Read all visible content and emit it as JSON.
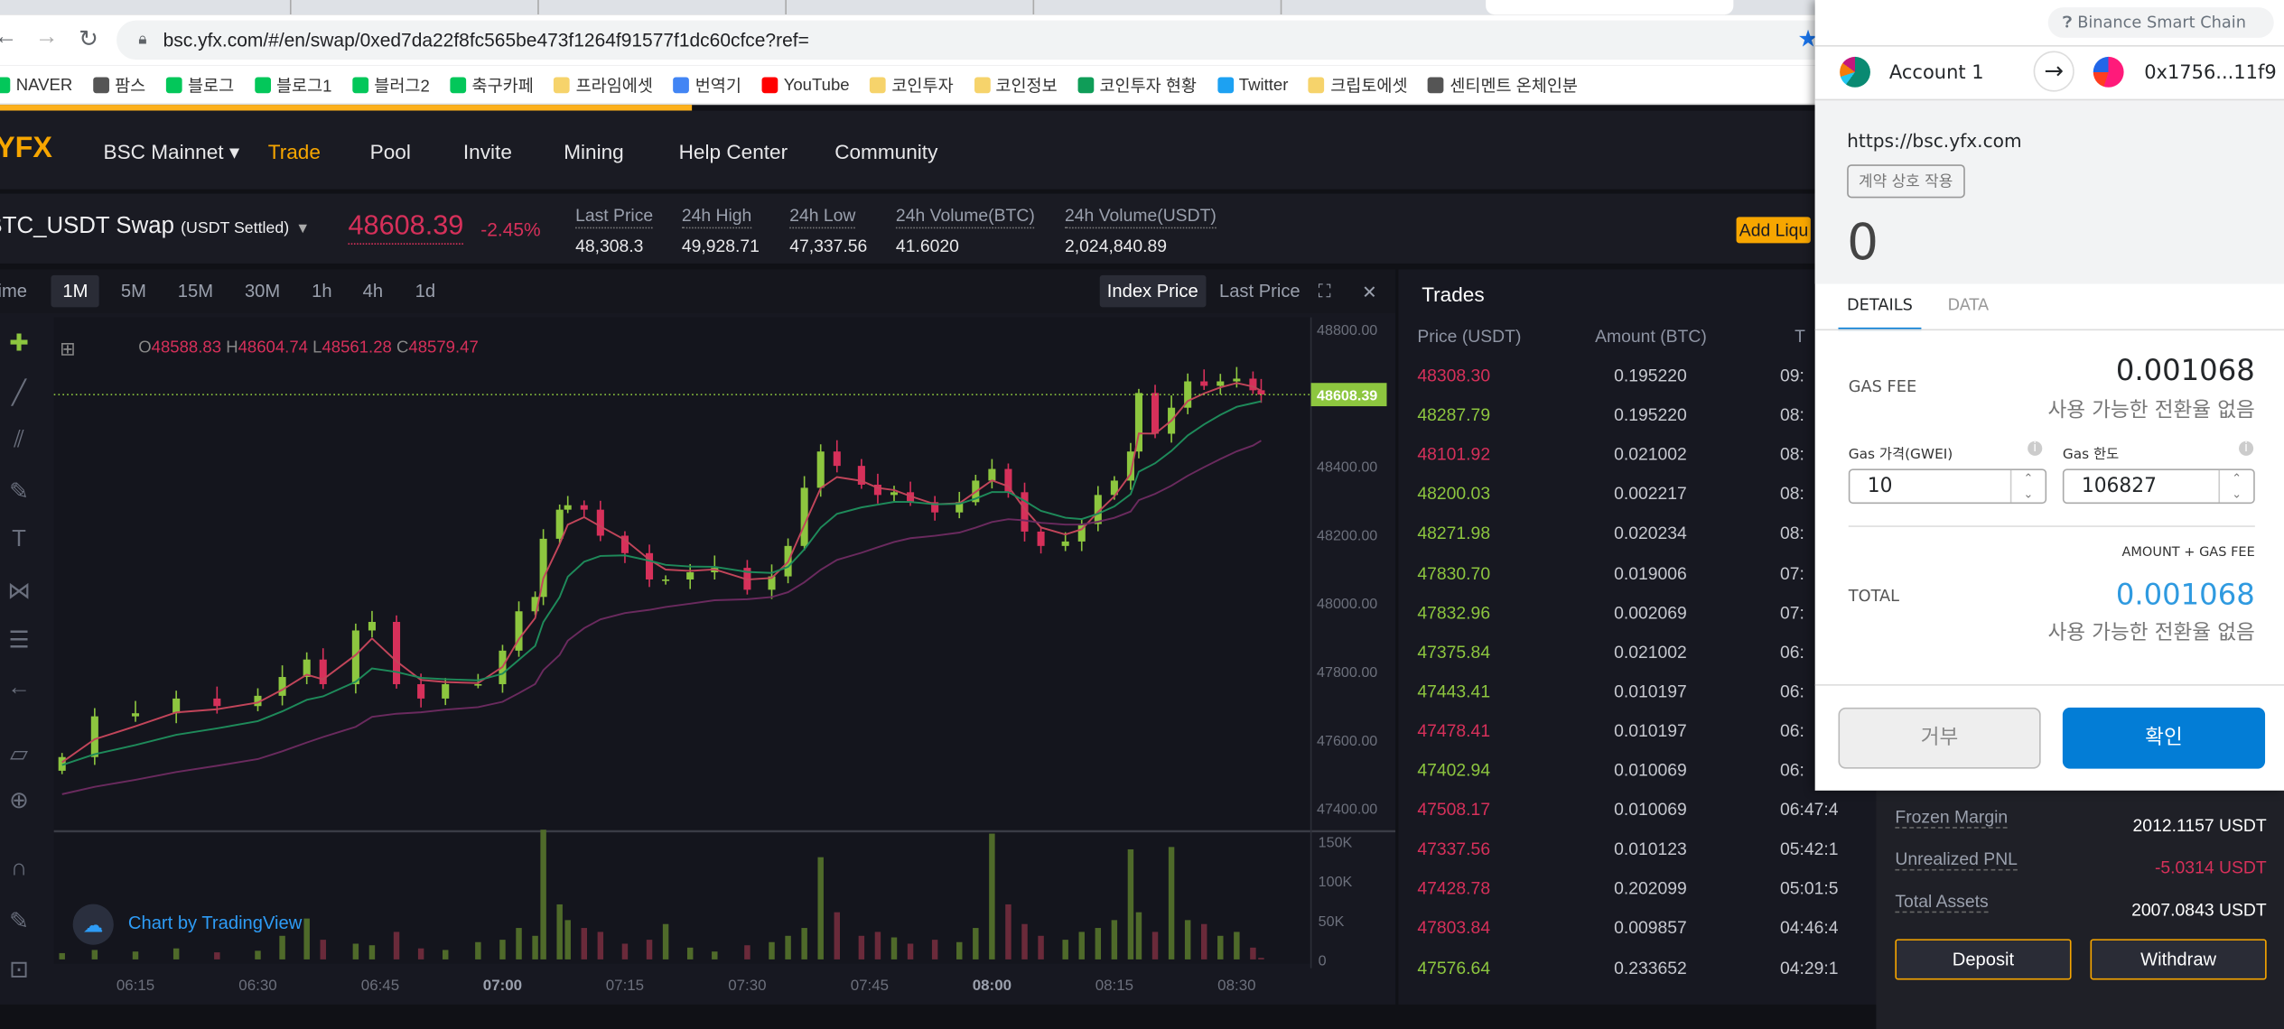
{
  "browser": {
    "url": "bsc.yfx.com/#/en/swap/0xed7da22f8fc565be473f1264f91577f1dc60cfce?ref=",
    "bookmarks": [
      {
        "label": "NAVER",
        "color": "#03c75a"
      },
      {
        "label": "팜스",
        "color": "#555"
      },
      {
        "label": "블로그",
        "color": "#03c75a"
      },
      {
        "label": "블로그1",
        "color": "#03c75a"
      },
      {
        "label": "블러그2",
        "color": "#03c75a"
      },
      {
        "label": "축구카페",
        "color": "#03c75a"
      },
      {
        "label": "프라임에셋",
        "color": "#f6d36b"
      },
      {
        "label": "번역기",
        "color": "#4285f4"
      },
      {
        "label": "YouTube",
        "color": "#ff0000"
      },
      {
        "label": "코인투자",
        "color": "#f6d36b"
      },
      {
        "label": "코인정보",
        "color": "#f6d36b"
      },
      {
        "label": "코인투자 현황",
        "color": "#0f9d58"
      },
      {
        "label": "Twitter",
        "color": "#1da1f2"
      },
      {
        "label": "크립토에셋",
        "color": "#f6d36b"
      },
      {
        "label": "센티멘트 온체인분",
        "color": "#555"
      }
    ]
  },
  "nav": {
    "logo": "YFX",
    "items": [
      "BSC Mainnet ▾",
      "Trade",
      "Pool",
      "Invite",
      "Mining",
      "Help Center",
      "Community"
    ],
    "active": "Trade"
  },
  "ticker": {
    "symbol": "BTC_USDT Swap",
    "settle": "(USDT Settled)",
    "price": "48608.39",
    "change": "-2.45%",
    "stats": [
      {
        "label": "Last Price",
        "value": "48,308.3"
      },
      {
        "label": "24h High",
        "value": "49,928.71"
      },
      {
        "label": "24h Low",
        "value": "47,337.56"
      },
      {
        "label": "24h Volume(BTC)",
        "value": "41.6020"
      },
      {
        "label": "24h Volume(USDT)",
        "value": "2,024,840.89"
      }
    ],
    "add_liquidity": "Add Liqu"
  },
  "chart_toolbar": {
    "intervals": [
      "time",
      "1M",
      "5M",
      "15M",
      "30M",
      "1h",
      "4h",
      "1d"
    ],
    "selected": "1M",
    "index_price": "Index Price",
    "last_price": "Last Price"
  },
  "chart_data": {
    "type": "candlestick",
    "interval": "1M",
    "ohlc_legend": {
      "o": "48588.83",
      "h": "48604.74",
      "l": "48561.28",
      "c": "48579.47"
    },
    "last_price_label": "48608.39",
    "x": [
      "06:06",
      "06:10",
      "06:15",
      "06:20",
      "06:25",
      "06:30",
      "06:33",
      "06:36",
      "06:38",
      "06:42",
      "06:44",
      "06:47",
      "06:50",
      "06:53",
      "06:57",
      "07:00",
      "07:02",
      "07:04",
      "07:05",
      "07:07",
      "07:08",
      "07:10",
      "07:12",
      "07:15",
      "07:18",
      "07:20",
      "07:23",
      "07:26",
      "07:30",
      "07:33",
      "07:35",
      "07:37",
      "07:39",
      "07:41",
      "07:44",
      "07:46",
      "07:48",
      "07:50",
      "07:53",
      "07:56",
      "07:58",
      "08:00",
      "08:02",
      "08:04",
      "08:06",
      "08:09",
      "08:11",
      "08:13",
      "08:15",
      "08:17",
      "08:18",
      "08:20",
      "08:22",
      "08:24",
      "08:26",
      "08:28",
      "08:30",
      "08:32",
      "08:33"
    ],
    "close": [
      47549,
      47668,
      47677,
      47720,
      47698,
      47728,
      47783,
      47834,
      47762,
      47919,
      47944,
      47762,
      47720,
      47762,
      47762,
      47860,
      47975,
      48017,
      48187,
      48272,
      48285,
      48272,
      48196,
      48145,
      48068,
      48068,
      48089,
      48102,
      48038,
      48077,
      48166,
      48336,
      48442,
      48400,
      48345,
      48315,
      48323,
      48294,
      48264,
      48294,
      48357,
      48391,
      48323,
      48208,
      48166,
      48179,
      48230,
      48315,
      48357,
      48442,
      48613,
      48494,
      48570,
      48647,
      48634,
      48647,
      48655,
      48621,
      48608.39
    ],
    "volume_k": [
      8,
      12,
      10,
      14,
      9,
      11,
      30,
      52,
      25,
      20,
      18,
      35,
      14,
      12,
      22,
      25,
      40,
      30,
      165,
      70,
      50,
      40,
      35,
      20,
      25,
      45,
      15,
      10,
      18,
      22,
      30,
      40,
      130,
      60,
      30,
      35,
      28,
      20,
      25,
      22,
      40,
      160,
      70,
      45,
      30,
      25,
      35,
      40,
      50,
      140,
      60,
      35,
      143,
      50,
      45,
      30,
      35,
      15,
      2
    ],
    "y_ticks": [
      "48800.00",
      "48400.00",
      "48200.00",
      "48000.00",
      "47800.00",
      "47600.00",
      "47400.00"
    ],
    "volume_ticks": [
      "150K",
      "100K",
      "50K",
      "0"
    ],
    "x_ticks": [
      "06:15",
      "06:30",
      "06:45",
      "07:00",
      "07:15",
      "07:30",
      "07:45",
      "08:00",
      "08:15",
      "08:30"
    ],
    "bold_ticks": [
      "07:00",
      "08:00"
    ],
    "colors": {
      "up": "#8dc63f",
      "down": "#d6305a",
      "ma_short": "#c2455a",
      "ma_mid": "#1e8a5a",
      "ma_long": "#6a2a5e"
    },
    "watermark": "Chart by TradingView"
  },
  "trades": {
    "title": "Trades",
    "columns": [
      "Price (USDT)",
      "Amount (BTC)",
      "T"
    ],
    "rows": [
      {
        "price": "48308.30",
        "amount": "0.195220",
        "time": "09:",
        "side": "sell"
      },
      {
        "price": "48287.79",
        "amount": "0.195220",
        "time": "08:",
        "side": "buy"
      },
      {
        "price": "48101.92",
        "amount": "0.021002",
        "time": "08:",
        "side": "sell"
      },
      {
        "price": "48200.03",
        "amount": "0.002217",
        "time": "08:",
        "side": "buy"
      },
      {
        "price": "48271.98",
        "amount": "0.020234",
        "time": "08:",
        "side": "buy"
      },
      {
        "price": "47830.70",
        "amount": "0.019006",
        "time": "07:",
        "side": "buy"
      },
      {
        "price": "47832.96",
        "amount": "0.002069",
        "time": "07:",
        "side": "buy"
      },
      {
        "price": "47375.84",
        "amount": "0.021002",
        "time": "06:",
        "side": "buy"
      },
      {
        "price": "47443.41",
        "amount": "0.010197",
        "time": "06:",
        "side": "buy"
      },
      {
        "price": "47478.41",
        "amount": "0.010197",
        "time": "06:",
        "side": "sell"
      },
      {
        "price": "47402.94",
        "amount": "0.010069",
        "time": "06:",
        "side": "buy"
      },
      {
        "price": "47508.17",
        "amount": "0.010069",
        "time": "06:47:4",
        "side": "sell"
      },
      {
        "price": "47337.56",
        "amount": "0.010123",
        "time": "05:42:1",
        "side": "sell"
      },
      {
        "price": "47428.78",
        "amount": "0.202099",
        "time": "05:01:5",
        "side": "sell"
      },
      {
        "price": "47803.84",
        "amount": "0.009857",
        "time": "04:46:4",
        "side": "sell"
      },
      {
        "price": "47576.64",
        "amount": "0.233652",
        "time": "04:29:1",
        "side": "buy"
      }
    ]
  },
  "account": {
    "rows": [
      {
        "label": "Frozen Margin",
        "value": "2012.1157 USDT"
      },
      {
        "label": "Unrealized PNL",
        "value": "-5.0314 USDT",
        "negative": true
      },
      {
        "label": "Total Assets",
        "value": "2007.0843 USDT"
      }
    ],
    "deposit": "Deposit",
    "withdraw": "Withdraw"
  },
  "wallet": {
    "network": "Binance Smart Chain",
    "from": "Account 1",
    "to": "0x1756...11f9",
    "origin": "https://bsc.yfx.com",
    "action": "계약 상호 작용",
    "amount": "0",
    "tabs": [
      "DETAILS",
      "DATA"
    ],
    "gas_fee_label": "GAS FEE",
    "gas_fee": "0.001068",
    "no_rate": "사용 가능한 전환율 없음",
    "gas_price_label": "Gas 가격(GWEI)",
    "gas_price": "10",
    "gas_limit_label": "Gas 한도",
    "gas_limit": "106827",
    "amount_gas": "AMOUNT + GAS FEE",
    "total_label": "TOTAL",
    "total": "0.001068",
    "total_no_rate": "사용 가능한 전환율 없음",
    "reject": "거부",
    "confirm": "확인",
    "accent": "#037dd6"
  }
}
